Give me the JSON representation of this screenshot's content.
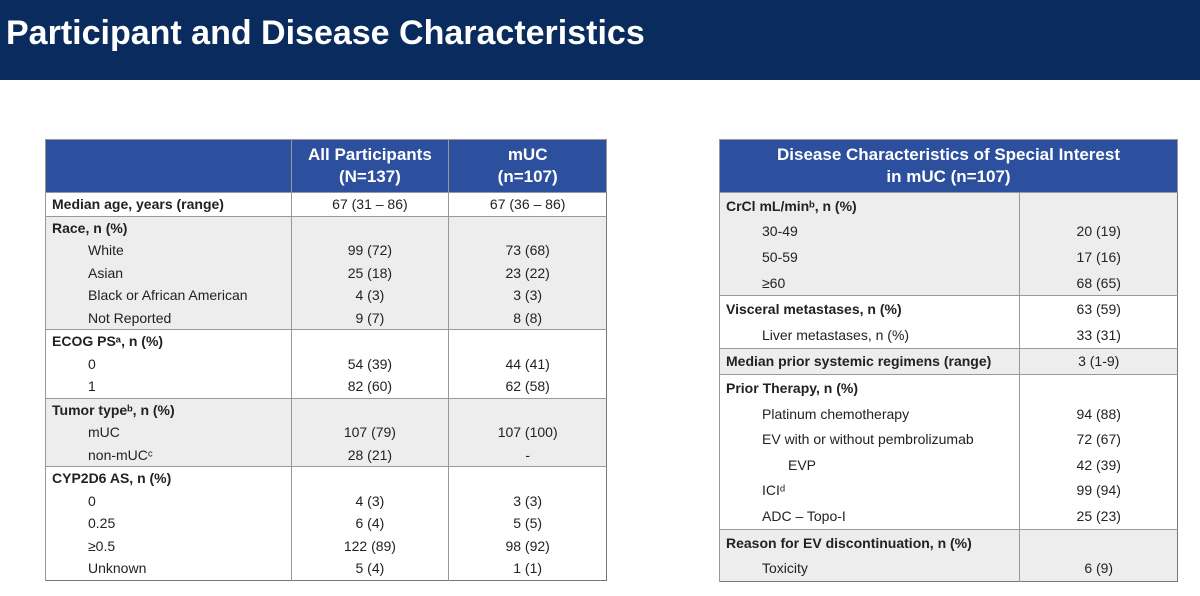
{
  "header": {
    "title": "Participant and Disease Characteristics"
  },
  "table1": {
    "columns": [
      "All Participants\n(N=137)",
      "mUC\n(n=107)"
    ],
    "groups": [
      {
        "label": "Median age, years (range)",
        "values": [
          "67 (31 – 86)",
          "67 (36 – 86)"
        ]
      },
      {
        "label": "Race, n (%)",
        "items": [
          {
            "label": "White",
            "values": [
              "99 (72)",
              "73 (68)"
            ]
          },
          {
            "label": "Asian",
            "values": [
              "25 (18)",
              "23 (22)"
            ]
          },
          {
            "label": "Black or African American",
            "values": [
              "4 (3)",
              "3 (3)"
            ]
          },
          {
            "label": "Not Reported",
            "values": [
              "9 (7)",
              "8 (8)"
            ]
          }
        ]
      },
      {
        "label": "ECOG PSᵃ, n (%)",
        "items": [
          {
            "label": "0",
            "values": [
              "54 (39)",
              "44 (41)"
            ]
          },
          {
            "label": "1",
            "values": [
              "82 (60)",
              "62 (58)"
            ]
          }
        ]
      },
      {
        "label": "Tumor typeᵇ, n (%)",
        "items": [
          {
            "label": "mUC",
            "values": [
              "107 (79)",
              "107 (100)"
            ]
          },
          {
            "label": "non-mUCᶜ",
            "values": [
              "28 (21)",
              "-"
            ]
          }
        ]
      },
      {
        "label": "CYP2D6 AS, n (%)",
        "items": [
          {
            "label": "0",
            "values": [
              "4 (3)",
              "3 (3)"
            ]
          },
          {
            "label": "0.25",
            "values": [
              "6 (4)",
              "5 (5)"
            ]
          },
          {
            "label": "≥0.5",
            "values": [
              "122 (89)",
              "98 (92)"
            ]
          },
          {
            "label": "Unknown",
            "values": [
              "5 (4)",
              "1 (1)"
            ]
          }
        ]
      }
    ]
  },
  "table2": {
    "columns": [
      "Disease Characteristics of Special Interest\nin mUC (n=107)"
    ],
    "groups": [
      {
        "label": "CrCl mL/minᵇ, n (%)",
        "items": [
          {
            "label": "30-49",
            "values": [
              "20 (19)"
            ]
          },
          {
            "label": "50-59",
            "values": [
              "17 (16)"
            ]
          },
          {
            "label": "≥60",
            "values": [
              "68 (65)"
            ]
          }
        ]
      },
      {
        "label": "Visceral metastases, n (%)",
        "values": [
          "63 (59)"
        ],
        "items": [
          {
            "label": "Liver metastases, n (%)",
            "values": [
              "33 (31)"
            ]
          }
        ]
      },
      {
        "label": "Median prior systemic regimens (range)",
        "values": [
          "3 (1-9)"
        ]
      },
      {
        "label": "Prior Therapy, n (%)",
        "items": [
          {
            "label": "Platinum chemotherapy",
            "values": [
              "94 (88)"
            ]
          },
          {
            "label": "EV with or without pembrolizumab",
            "values": [
              "72 (67)"
            ],
            "items": [
              {
                "label": "EVP",
                "values": [
                  "42 (39)"
                ]
              }
            ]
          },
          {
            "label": "ICIᵈ",
            "values": [
              "99 (94)"
            ]
          },
          {
            "label": "ADC – Topo-I",
            "values": [
              "25 (23)"
            ]
          }
        ]
      },
      {
        "label": "Reason for EV discontinuation, n (%)",
        "items": [
          {
            "label": "Toxicity",
            "values": [
              "6 (9)"
            ]
          }
        ]
      }
    ]
  }
}
